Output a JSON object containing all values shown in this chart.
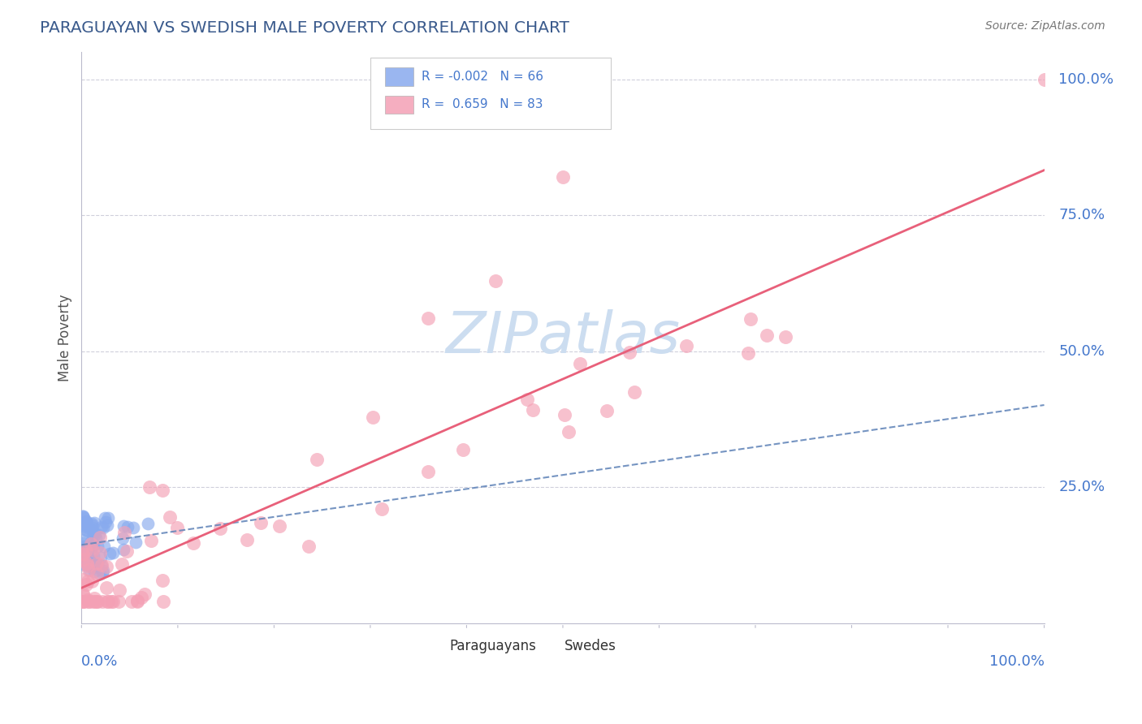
{
  "title": "PARAGUAYAN VS SWEDISH MALE POVERTY CORRELATION CHART",
  "source": "Source: ZipAtlas.com",
  "ylabel": "Male Poverty",
  "title_color": "#3a5a8c",
  "source_color": "#777777",
  "blue_color": "#88aaee",
  "pink_color": "#f4a0b5",
  "trend_blue_color": "#6688bb",
  "trend_pink_color": "#e8607a",
  "watermark_color": "#ccddf0",
  "grid_color": "#bbbbcc",
  "legend_r1": "R = -0.002",
  "legend_n1": "N = 66",
  "legend_r2": "R =  0.659",
  "legend_n2": "N = 83",
  "legend_text_color": "#4477cc",
  "axis_label_color": "#4477cc",
  "ylabel_color": "#555555"
}
